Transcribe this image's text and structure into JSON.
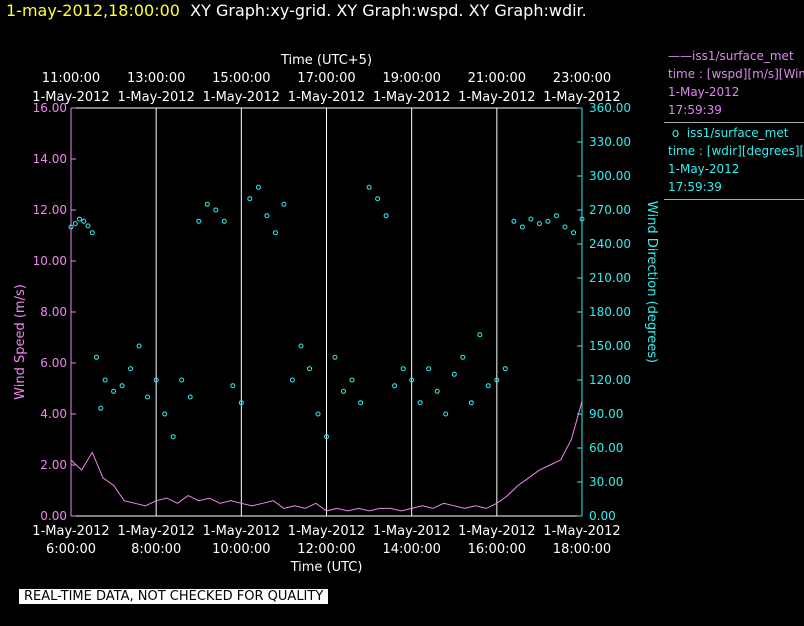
{
  "header": {
    "timestamp": "1-may-2012,18:00:00",
    "graphs": "XY Graph:xy-grid.  XY Graph:wspd.  XY Graph:wdir."
  },
  "legend": {
    "series1": {
      "source": "iss1/surface_met",
      "field": "time : [wspd][m/s][Wind",
      "date": "1-May-2012",
      "time": "17:59:39",
      "color": "#ee88ee"
    },
    "series2": {
      "source": "iss1/surface_met",
      "field": "time : [wdir][degrees][W",
      "date": "1-May-2012",
      "time": "17:59:39",
      "color": "#33eeee"
    }
  },
  "qc_notice": "REAL-TIME DATA, NOT CHECKED FOR QUALITY",
  "chart_data": {
    "type": "line",
    "top_axis": {
      "title": "Time (UTC+5)",
      "ticks": [
        {
          "time": "11:00:00",
          "date": "1-May-2012"
        },
        {
          "time": "13:00:00",
          "date": "1-May-2012"
        },
        {
          "time": "15:00:00",
          "date": "1-May-2012"
        },
        {
          "time": "17:00:00",
          "date": "1-May-2012"
        },
        {
          "time": "19:00:00",
          "date": "1-May-2012"
        },
        {
          "time": "21:00:00",
          "date": "1-May-2012"
        },
        {
          "time": "23:00:00",
          "date": "1-May-2012"
        }
      ]
    },
    "bottom_axis": {
      "title": "Time (UTC)",
      "ticks": [
        {
          "time": "6:00:00",
          "date": "1-May-2012"
        },
        {
          "time": "8:00:00",
          "date": "1-May-2012"
        },
        {
          "time": "10:00:00",
          "date": "1-May-2012"
        },
        {
          "time": "12:00:00",
          "date": "1-May-2012"
        },
        {
          "time": "14:00:00",
          "date": "1-May-2012"
        },
        {
          "time": "16:00:00",
          "date": "1-May-2012"
        },
        {
          "time": "18:00:00",
          "date": "1-May-2012"
        }
      ]
    },
    "xlim_hours_utc": [
      6,
      18
    ],
    "vertical_grid_hours_utc": [
      8,
      10,
      12,
      14,
      16,
      18
    ],
    "left_axis": {
      "title": "Wind Speed (m/s)",
      "ylim": [
        0,
        16
      ],
      "ticks": [
        "0.00",
        "2.00",
        "4.00",
        "6.00",
        "8.00",
        "10.00",
        "12.00",
        "14.00",
        "16.00"
      ],
      "color": "#ee88ee"
    },
    "right_axis": {
      "title": "Wind Direction (degrees)",
      "ylim": [
        0,
        360
      ],
      "ticks": [
        "0.00",
        "30.00",
        "60.00",
        "90.00",
        "120.00",
        "150.00",
        "180.00",
        "210.00",
        "240.00",
        "270.00",
        "300.00",
        "330.00",
        "360.00"
      ],
      "color": "#33eeee"
    },
    "series": [
      {
        "name": "iss1/surface_met wspd",
        "style": "line",
        "axis": "left",
        "x_hours_utc": [
          6.0,
          6.25,
          6.5,
          6.75,
          7.0,
          7.25,
          7.5,
          7.75,
          8.0,
          8.25,
          8.5,
          8.75,
          9.0,
          9.25,
          9.5,
          9.75,
          10.0,
          10.25,
          10.5,
          10.75,
          11.0,
          11.25,
          11.5,
          11.75,
          12.0,
          12.25,
          12.5,
          12.75,
          13.0,
          13.25,
          13.5,
          13.75,
          14.0,
          14.25,
          14.5,
          14.75,
          15.0,
          15.25,
          15.5,
          15.75,
          16.0,
          16.25,
          16.5,
          16.75,
          17.0,
          17.25,
          17.5,
          17.75,
          18.0
        ],
        "values": [
          2.2,
          1.8,
          2.5,
          1.5,
          1.2,
          0.6,
          0.5,
          0.4,
          0.6,
          0.7,
          0.5,
          0.8,
          0.6,
          0.7,
          0.5,
          0.6,
          0.5,
          0.4,
          0.5,
          0.6,
          0.3,
          0.4,
          0.3,
          0.5,
          0.2,
          0.3,
          0.2,
          0.3,
          0.2,
          0.3,
          0.3,
          0.2,
          0.3,
          0.4,
          0.3,
          0.5,
          0.4,
          0.3,
          0.4,
          0.3,
          0.5,
          0.8,
          1.2,
          1.5,
          1.8,
          2.0,
          2.2,
          3.0,
          4.5
        ]
      },
      {
        "name": "iss1/surface_met wdir",
        "style": "scatter",
        "axis": "right",
        "x_hours_utc": [
          6.0,
          6.1,
          6.2,
          6.3,
          6.4,
          6.5,
          6.6,
          6.7,
          6.8,
          7.0,
          7.2,
          7.4,
          7.6,
          7.8,
          8.0,
          8.2,
          8.4,
          8.6,
          8.8,
          9.0,
          9.2,
          9.4,
          9.6,
          9.8,
          10.0,
          10.2,
          10.4,
          10.6,
          10.8,
          11.0,
          11.2,
          11.4,
          11.6,
          11.8,
          12.0,
          12.2,
          12.4,
          12.6,
          12.8,
          13.0,
          13.2,
          13.4,
          13.6,
          13.8,
          14.0,
          14.2,
          14.4,
          14.6,
          14.8,
          15.0,
          15.2,
          15.4,
          15.6,
          15.8,
          16.0,
          16.2,
          16.4,
          16.6,
          16.8,
          17.0,
          17.2,
          17.4,
          17.6,
          17.8,
          18.0
        ],
        "values": [
          255,
          258,
          262,
          260,
          256,
          250,
          140,
          95,
          120,
          110,
          115,
          130,
          150,
          105,
          120,
          90,
          70,
          120,
          105,
          260,
          275,
          270,
          260,
          115,
          100,
          280,
          290,
          265,
          250,
          275,
          120,
          150,
          130,
          90,
          70,
          140,
          110,
          120,
          100,
          290,
          280,
          265,
          115,
          130,
          120,
          100,
          130,
          110,
          90,
          125,
          140,
          100,
          160,
          115,
          120,
          130,
          260,
          255,
          262,
          258,
          260,
          265,
          255,
          250,
          262
        ]
      }
    ]
  }
}
